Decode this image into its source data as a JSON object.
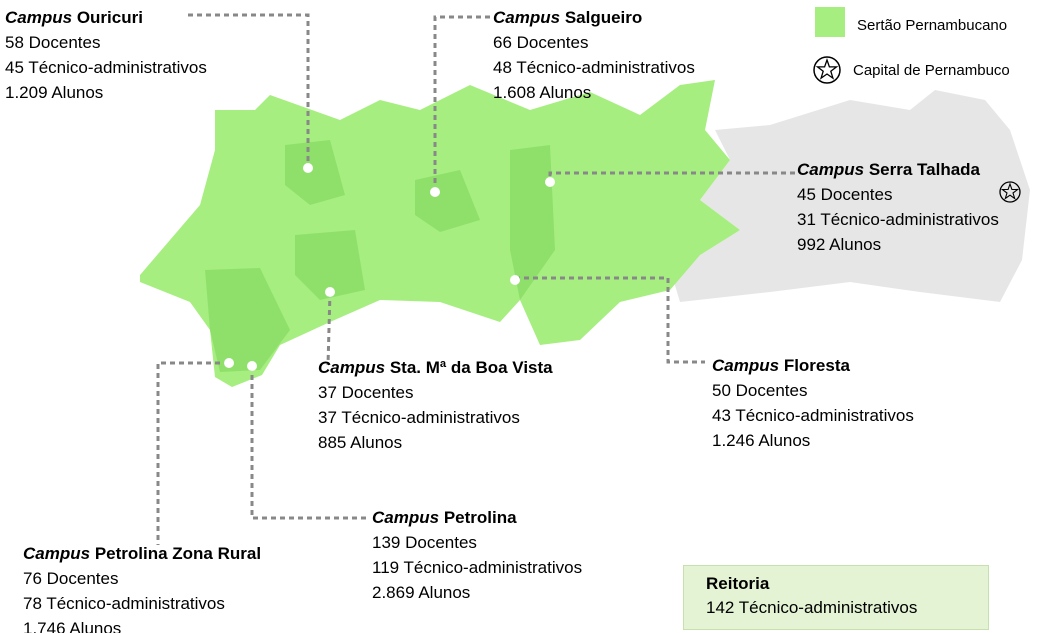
{
  "legend": {
    "region": "Sertão Pernambucano",
    "capital": "Capital de Pernambuco"
  },
  "campuses": [
    {
      "prefix": "Campus",
      "name": "Ouricuri",
      "lines": [
        "58 Docentes",
        "45 Técnico-administrativos",
        "1.209 Alunos"
      ]
    },
    {
      "prefix": "Campus",
      "name": "Salgueiro",
      "lines": [
        "66 Docentes",
        "48 Técnico-administrativos",
        "1.608 Alunos"
      ]
    },
    {
      "prefix": "Campus",
      "name": "Serra Talhada",
      "lines": [
        "45 Docentes",
        "31 Técnico-administrativos",
        "992 Alunos"
      ]
    },
    {
      "prefix": "Campus",
      "name": "Sta. Mª da Boa Vista",
      "lines": [
        "37 Docentes",
        "37 Técnico-administrativos",
        "885 Alunos"
      ]
    },
    {
      "prefix": "Campus",
      "name": "Floresta",
      "lines": [
        "50 Docentes",
        "43 Técnico-administrativos",
        "1.246 Alunos"
      ]
    },
    {
      "prefix": "Campus",
      "name": "Petrolina",
      "lines": [
        "139 Docentes",
        "119 Técnico-administrativos",
        "2.869 Alunos"
      ]
    },
    {
      "prefix": "Campus",
      "name": "Petrolina Zona Rural",
      "lines": [
        "76 Docentes",
        "78 Técnico-administrativos",
        "1.746 Alunos"
      ]
    }
  ],
  "reitoria": {
    "title": "Reitoria",
    "line": "142 Técnico-administrativos"
  }
}
